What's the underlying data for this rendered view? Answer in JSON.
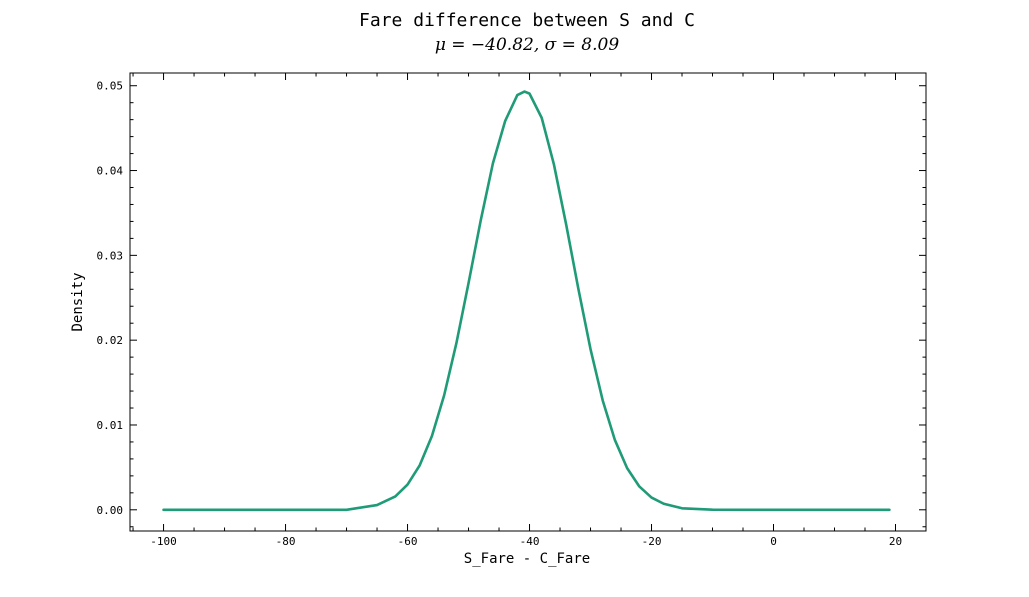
{
  "chart_data": {
    "type": "line",
    "title": "Fare difference between S and C",
    "subtitle": "μ = −40.82,    σ = 8.09",
    "xlabel": "S_Fare - C_Fare",
    "ylabel": "Density",
    "xlim": [
      -105.5,
      25
    ],
    "ylim": [
      -0.0025,
      0.0515
    ],
    "x_ticks": [
      -100,
      -80,
      -60,
      -40,
      -20,
      0,
      20
    ],
    "x_tick_labels": [
      "-100",
      "-80",
      "-60",
      "-40",
      "-20",
      "0",
      "20"
    ],
    "y_ticks": [
      0.0,
      0.01,
      0.02,
      0.03,
      0.04,
      0.05
    ],
    "y_tick_labels": [
      "0.00",
      "0.01",
      "0.02",
      "0.03",
      "0.04",
      "0.05"
    ],
    "grid": false,
    "series": [
      {
        "color": "#1f9b77",
        "distribution": "normal",
        "mu": -40.82,
        "sigma": 8.09,
        "x": [
          -100,
          -95,
          -90,
          -85,
          -80,
          -75,
          -70,
          -65,
          -62,
          -60,
          -58,
          -56,
          -54,
          -52,
          -50,
          -48,
          -46,
          -44,
          -42,
          -40.82,
          -40,
          -38,
          -36,
          -34,
          -32,
          -30,
          -28,
          -26,
          -24,
          -22,
          -20,
          -18,
          -15,
          -10,
          -5,
          0,
          5,
          10,
          15,
          19
        ],
        "y": [
          0.0,
          0.0,
          0.0,
          0.0,
          0.0,
          0.0,
          0.0,
          0.00056,
          0.00157,
          0.00297,
          0.00525,
          0.0087,
          0.01349,
          0.01961,
          0.02672,
          0.03413,
          0.04086,
          0.04583,
          0.0489,
          0.04931,
          0.04907,
          0.04621,
          0.04072,
          0.03366,
          0.02608,
          0.01894,
          0.01289,
          0.00822,
          0.00491,
          0.00275,
          0.00144,
          0.00071,
          0.00018,
          1e-05,
          0.0,
          0.0,
          0.0,
          0.0,
          0.0,
          0.0
        ]
      }
    ]
  }
}
